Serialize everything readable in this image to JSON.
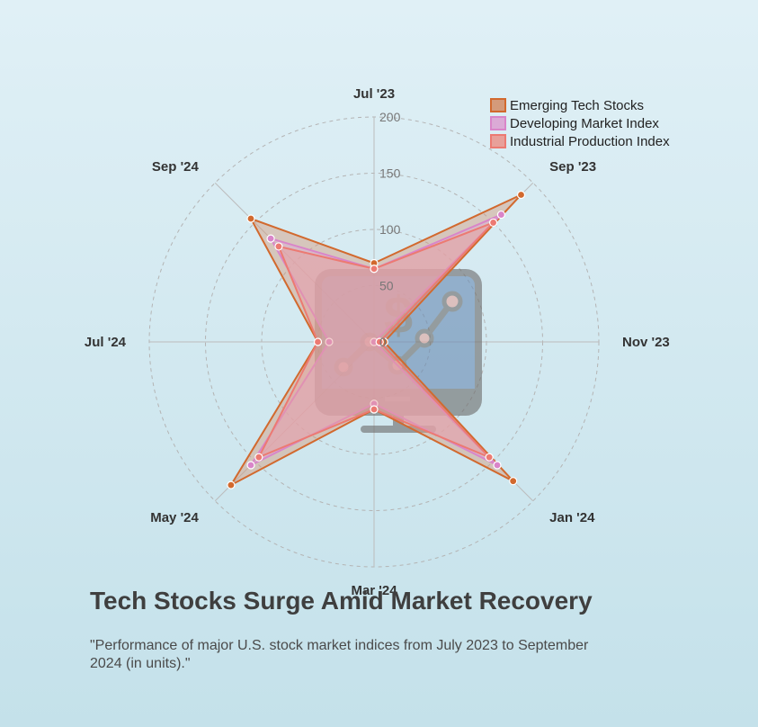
{
  "chart_data": {
    "type": "radar",
    "title": "Tech Stocks Surge Amid Market Recovery",
    "subtitle": "\"Performance of major U.S. stock market indices from July 2023 to September 2024 (in units).\"",
    "categories": [
      "Jul '23",
      "Sep '23",
      "Nov '23",
      "Jan '24",
      "Mar '24",
      "May '24",
      "Jul '24",
      "Sep '24"
    ],
    "r_ticks": [
      0,
      50,
      100,
      150,
      200
    ],
    "r_range": [
      0,
      200
    ],
    "grid": true,
    "legend_position": "top-right",
    "series": [
      {
        "name": "Emerging Tech Stocks",
        "values": [
          70,
          185,
          9,
          175,
          60,
          180,
          50,
          155
        ],
        "color": "#d2692e",
        "fill": "#d49a7a"
      },
      {
        "name": "Developing Market Index",
        "values": [
          65,
          160,
          0,
          155,
          55,
          155,
          40,
          130
        ],
        "color": "#d985c9",
        "fill": "#dbaad6"
      },
      {
        "name": "Industrial Production Index",
        "values": [
          65,
          150,
          5,
          145,
          60,
          145,
          50,
          120
        ],
        "color": "#ec7a72",
        "fill": "#e8a09a"
      }
    ]
  }
}
